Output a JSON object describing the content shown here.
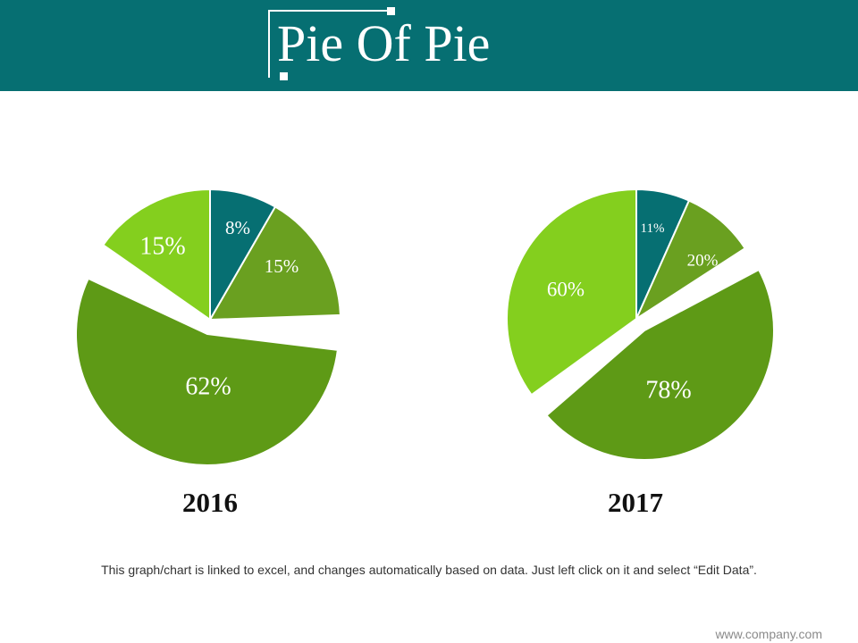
{
  "title": "Pie Of Pie",
  "colors": {
    "header": "#066f72",
    "teal": "#066f72",
    "green_medium": "#6aa020",
    "green_dark": "#5e9a16",
    "green_light": "#84cf1e"
  },
  "chart_data": [
    {
      "type": "pie",
      "title": "2016",
      "slices": [
        {
          "label": "8%",
          "value": 8,
          "color": "#066f72"
        },
        {
          "label": "15%",
          "value": 15,
          "color": "#6aa020"
        },
        {
          "label": "62%",
          "value": 62,
          "color": "#5e9a16"
        },
        {
          "label": "15%",
          "value": 15,
          "color": "#84cf1e"
        }
      ]
    },
    {
      "type": "pie",
      "title": "2017",
      "slices": [
        {
          "label": "11%",
          "value": 11,
          "color": "#066f72"
        },
        {
          "label": "20%",
          "value": 20,
          "color": "#6aa020"
        },
        {
          "label": "78%",
          "value": 78,
          "color": "#5e9a16"
        },
        {
          "label": "60%",
          "value": 60,
          "color": "#84cf1e"
        }
      ]
    }
  ],
  "footnote": "This graph/chart is linked to excel, and changes automatically based on data. Just left click on it and select “Edit Data”.",
  "website": "www.company.com"
}
